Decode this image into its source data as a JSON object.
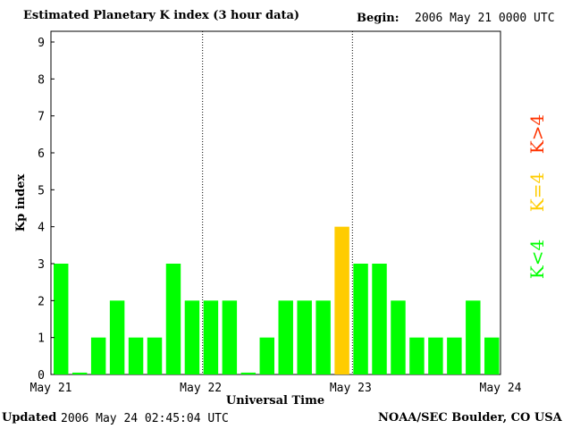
{
  "header": {
    "title": "Estimated Planetary K index (3 hour data)",
    "begin_label": "Begin:",
    "begin_value": "2006 May 21 0000 UTC"
  },
  "footer": {
    "updated_label": "Updated",
    "updated_value": "2006 May 24 02:45:04 UTC",
    "credit": "NOAA/SEC Boulder, CO USA"
  },
  "colors": {
    "low": "#00ff00",
    "storm_threshold": "#ffcc00",
    "high": "#ff3300",
    "axis": "#000000"
  },
  "chart_data": {
    "type": "bar",
    "xlabel": "Universal Time",
    "ylabel": "Kp index",
    "ylim": [
      0,
      9
    ],
    "y_ticks": [
      "0",
      "1",
      "2",
      "3",
      "4",
      "5",
      "6",
      "7",
      "8",
      "9"
    ],
    "x_ticks": [
      "May 21",
      "May 22",
      "May 23",
      "May 24"
    ],
    "day_dividers_at": [
      "May 22",
      "May 23"
    ],
    "interval_hours": 3,
    "values": [
      3,
      0.05,
      1,
      2,
      1,
      1,
      3,
      2,
      2,
      2,
      0.05,
      1,
      2,
      2,
      2,
      4,
      3,
      3,
      2,
      1,
      1,
      1,
      2,
      1
    ],
    "legend": [
      {
        "label": "K<4",
        "color": "#00ff00"
      },
      {
        "label": "K=4",
        "color": "#ffcc00"
      },
      {
        "label": "K>4",
        "color": "#ff3300"
      }
    ]
  }
}
